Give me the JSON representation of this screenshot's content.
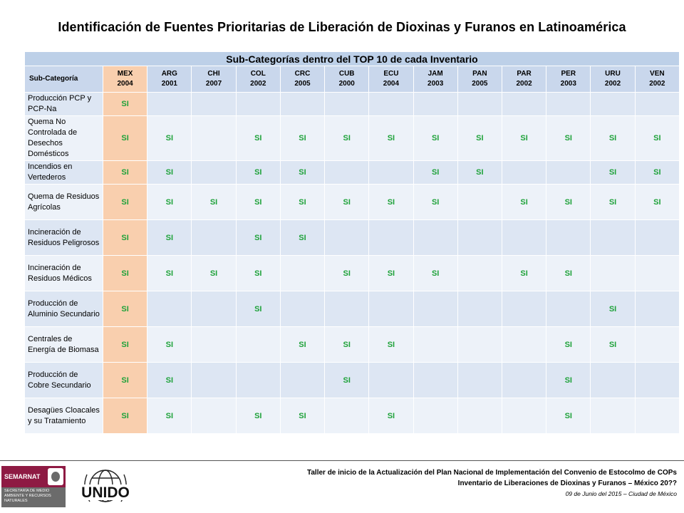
{
  "title": "Identificación de Fuentes Prioritarias de Liberación de Dioxinas y Furanos en Latinoamérica",
  "table": {
    "caption": "Sub-Categorías dentro del TOP 10 de cada Inventario",
    "header_first": "Sub-Categoría",
    "columns": [
      {
        "code": "MEX",
        "year": "2004"
      },
      {
        "code": "ARG",
        "year": "2001"
      },
      {
        "code": "CHI",
        "year": "2007"
      },
      {
        "code": "COL",
        "year": "2002"
      },
      {
        "code": "CRC",
        "year": "2005"
      },
      {
        "code": "CUB",
        "year": "2000"
      },
      {
        "code": "ECU",
        "year": "2004"
      },
      {
        "code": "JAM",
        "year": "2003"
      },
      {
        "code": "PAN",
        "year": "2005"
      },
      {
        "code": "PAR",
        "year": "2002"
      },
      {
        "code": "PER",
        "year": "2003"
      },
      {
        "code": "URU",
        "year": "2002"
      },
      {
        "code": "VEN",
        "year": "2002"
      }
    ],
    "rows": [
      {
        "label": "Producción PCP y PCP-Na",
        "values": [
          "SI",
          "",
          "",
          "",
          "",
          "",
          "",
          "",
          "",
          "",
          "",
          "",
          ""
        ]
      },
      {
        "label": "Quema No Controlada de Desechos Domésticos",
        "values": [
          "SI",
          "SI",
          "",
          "SI",
          "SI",
          "SI",
          "SI",
          "SI",
          "SI",
          "SI",
          "SI",
          "SI",
          "SI"
        ]
      },
      {
        "label": "Incendios en Vertederos",
        "values": [
          "SI",
          "SI",
          "",
          "SI",
          "SI",
          "",
          "",
          "SI",
          "SI",
          "",
          "",
          "SI",
          "SI"
        ]
      },
      {
        "label": "Quema de Residuos Agrícolas",
        "values": [
          "SI",
          "SI",
          "SI",
          "SI",
          "SI",
          "SI",
          "SI",
          "SI",
          "",
          "SI",
          "SI",
          "SI",
          "SI"
        ]
      },
      {
        "label": "Incineración de Residuos Peligrosos",
        "values": [
          "SI",
          "SI",
          "",
          "SI",
          "SI",
          "",
          "",
          "",
          "",
          "",
          "",
          "",
          ""
        ]
      },
      {
        "label": "Incineración de Residuos Médicos",
        "values": [
          "SI",
          "SI",
          "SI",
          "SI",
          "",
          "SI",
          "SI",
          "SI",
          "",
          "SI",
          "SI",
          "",
          ""
        ]
      },
      {
        "label": "Producción de Aluminio Secundario",
        "values": [
          "SI",
          "",
          "",
          "SI",
          "",
          "",
          "",
          "",
          "",
          "",
          "",
          "SI",
          ""
        ]
      },
      {
        "label": "Centrales de Energía de Biomasa",
        "values": [
          "SI",
          "SI",
          "",
          "",
          "SI",
          "SI",
          "SI",
          "",
          "",
          "",
          "SI",
          "SI",
          ""
        ]
      },
      {
        "label": "Producción de Cobre Secundario",
        "values": [
          "SI",
          "SI",
          "",
          "",
          "",
          "SI",
          "",
          "",
          "",
          "",
          "SI",
          "",
          ""
        ]
      },
      {
        "label": "Desagües Cloacales y su Tratamiento",
        "values": [
          "SI",
          "SI",
          "",
          "SI",
          "SI",
          "",
          "SI",
          "",
          "",
          "",
          "SI",
          "",
          ""
        ]
      }
    ]
  },
  "footer": {
    "line1": "Taller de inicio de la Actualización  del Plan Nacional  de Implementación del Convenio de Estocolmo  de COPs",
    "line2": "Inventario de Liberaciones de Dioxinas y Furanos – México  20??",
    "date": "09 de Junio del 2015 – Ciudad de México"
  },
  "logos": {
    "semarnat": {
      "name": "SEMARNAT",
      "subtitle": "SECRETARÍA DE MEDIO AMBIENTE Y RECURSOS NATURALES",
      "color": "#8e1a43"
    },
    "unido": {
      "name": "UNIDO"
    }
  },
  "colors": {
    "yes": "#1fa23a",
    "mex_highlight": "#f9cfae",
    "header": "#c9d7ec"
  }
}
